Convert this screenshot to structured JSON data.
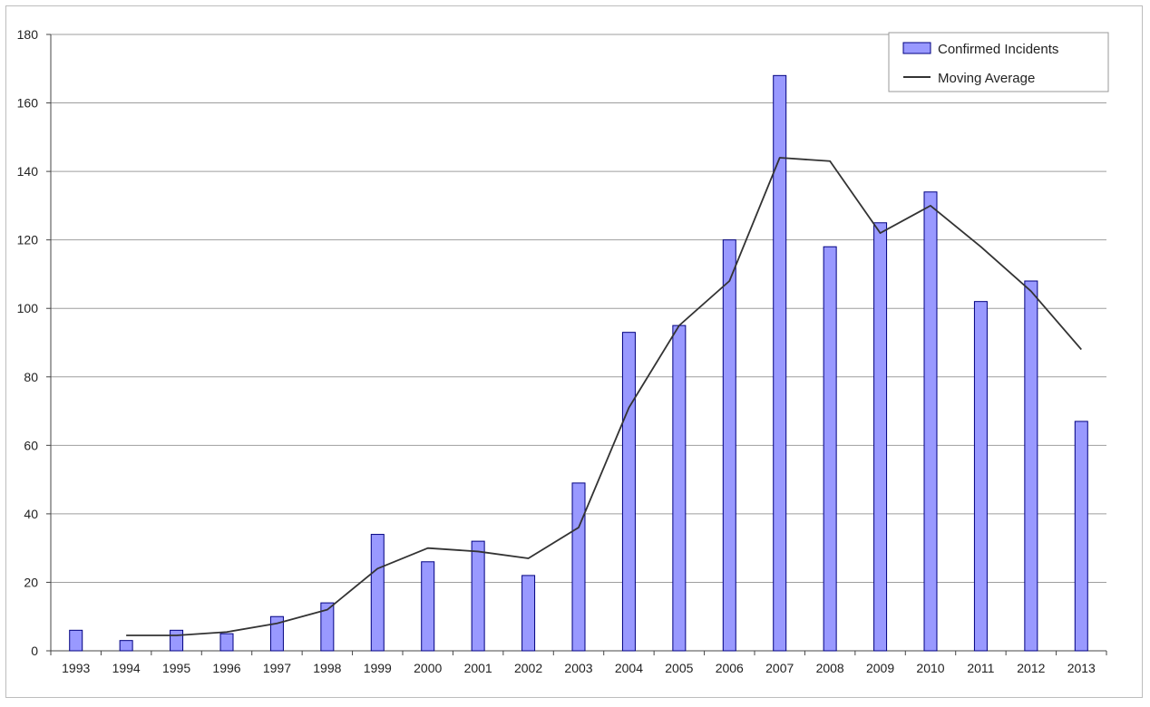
{
  "chart_data": {
    "type": "bar",
    "title": "",
    "xlabel": "",
    "ylabel": "",
    "categories": [
      "1993",
      "1994",
      "1995",
      "1996",
      "1997",
      "1998",
      "1999",
      "2000",
      "2001",
      "2002",
      "2003",
      "2004",
      "2005",
      "2006",
      "2007",
      "2008",
      "2009",
      "2010",
      "2011",
      "2012",
      "2013"
    ],
    "ylim": [
      0,
      180
    ],
    "yticks": [
      0,
      20,
      40,
      60,
      80,
      100,
      120,
      140,
      160,
      180
    ],
    "grid": true,
    "legend_position": "top-right",
    "series": [
      {
        "name": "Confirmed Incidents",
        "type": "bar",
        "color": "#9999ff",
        "values": [
          6,
          3,
          6,
          5,
          10,
          14,
          34,
          26,
          32,
          22,
          49,
          93,
          95,
          120,
          168,
          118,
          125,
          134,
          102,
          108,
          67
        ]
      },
      {
        "name": "Moving Average",
        "type": "line",
        "color": "#333333",
        "values": [
          null,
          4.5,
          4.5,
          5.5,
          8,
          12,
          24,
          30,
          29,
          27,
          36,
          71,
          95,
          108,
          144,
          143,
          122,
          130,
          118,
          105,
          88
        ]
      }
    ]
  }
}
